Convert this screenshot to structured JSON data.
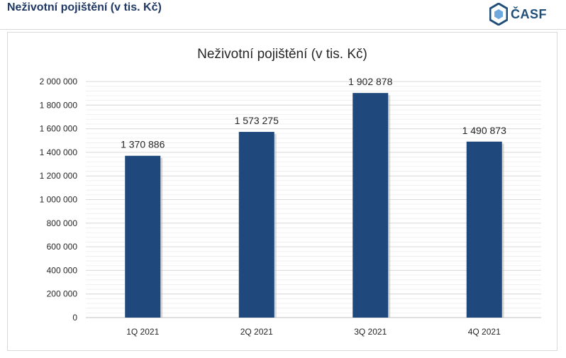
{
  "header": {
    "title": "Neživotní pojištění (v tis. Kč)",
    "logo_text": "ČASF"
  },
  "colors": {
    "bar": "#1f497d",
    "title": "#1f3864",
    "logo": "#1f4e79",
    "grid": "#d9d9d9"
  },
  "chart_data": {
    "type": "bar",
    "title": "Neživotní pojištění (v tis. Kč)",
    "categories": [
      "1Q 2021",
      "2Q 2021",
      "3Q 2021",
      "4Q 2021"
    ],
    "values": [
      1370886,
      1573275,
      1902878,
      1490873
    ],
    "value_labels": [
      "1 370 886",
      "1 573 275",
      "1 902 878",
      "1 490 873"
    ],
    "ylim": [
      0,
      2000000
    ],
    "yticks": [
      0,
      200000,
      400000,
      600000,
      800000,
      1000000,
      1200000,
      1400000,
      1600000,
      1800000,
      2000000
    ],
    "ytick_labels": [
      "0",
      "200 000",
      "400 000",
      "600 000",
      "800 000",
      "1 000 000",
      "1 200 000",
      "1 400 000",
      "1 600 000",
      "1 800 000",
      "2 000 000"
    ],
    "grid": true,
    "xlabel": "",
    "ylabel": ""
  }
}
